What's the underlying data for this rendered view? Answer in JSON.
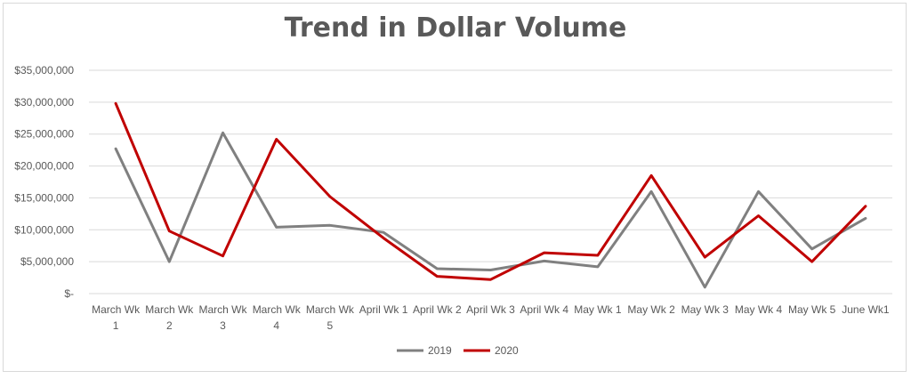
{
  "chart_data": {
    "type": "line",
    "title": "Trend in Dollar Volume",
    "categories": [
      [
        "March Wk",
        "1"
      ],
      [
        "March Wk",
        "2"
      ],
      [
        "March Wk",
        "3"
      ],
      [
        "March Wk",
        "4"
      ],
      [
        "March Wk",
        "5"
      ],
      [
        "April Wk 1"
      ],
      [
        "April Wk 2"
      ],
      [
        "April Wk 3"
      ],
      [
        "April Wk 4"
      ],
      [
        "May Wk 1"
      ],
      [
        "May Wk 2"
      ],
      [
        "May Wk 3"
      ],
      [
        "May Wk 4"
      ],
      [
        "May Wk 5"
      ],
      [
        "June Wk1"
      ]
    ],
    "y_ticks": [
      {
        "value": 0,
        "label": "$-"
      },
      {
        "value": 5000000,
        "label": "$5,000,000"
      },
      {
        "value": 10000000,
        "label": "$10,000,000"
      },
      {
        "value": 15000000,
        "label": "$15,000,000"
      },
      {
        "value": 20000000,
        "label": "$20,000,000"
      },
      {
        "value": 25000000,
        "label": "$25,000,000"
      },
      {
        "value": 30000000,
        "label": "$30,000,000"
      },
      {
        "value": 35000000,
        "label": "$35,000,000"
      }
    ],
    "ylim": [
      0,
      35000000
    ],
    "grid": true,
    "legend_position": "bottom",
    "series": [
      {
        "name": "2019",
        "color": "#808080",
        "values": [
          22700000,
          5000000,
          25200000,
          10400000,
          10700000,
          9600000,
          3900000,
          3700000,
          5100000,
          4200000,
          16000000,
          1000000,
          16000000,
          7000000,
          11800000
        ]
      },
      {
        "name": "2020",
        "color": "#c00000",
        "values": [
          29800000,
          9800000,
          5900000,
          24200000,
          15200000,
          8700000,
          2700000,
          2200000,
          6400000,
          6000000,
          18500000,
          5700000,
          12200000,
          5000000,
          13700000
        ]
      }
    ]
  }
}
